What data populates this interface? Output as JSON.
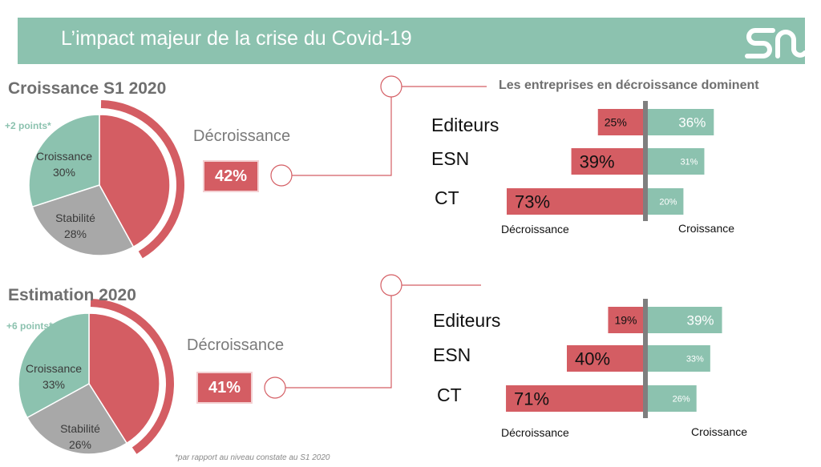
{
  "header": {
    "title": "L’impact majeur de la crise du Covid-19"
  },
  "footnote": "*par rapport au niveau constate au S1 2020",
  "colors": {
    "decroissance": "#d45d63",
    "croissance": "#8cc2af",
    "stabilite": "#a8a8a8",
    "divider": "#7f7f7f"
  },
  "logo": {
    "icon": "sn-logo-icon"
  },
  "sections": [
    {
      "title": "Croissance S1 2020",
      "points_note": "+2 points*",
      "decroissance_label": "Décroissance",
      "decroissance_value": "42%",
      "pie_labels": {
        "croissance": "Croissance",
        "croissance_value": "30%",
        "stabilite": "Stabilité",
        "stabilite_value": "28%"
      },
      "bars_heading": "Les entreprises en décroissance dominent",
      "categories": [
        "Editeurs",
        "ESN",
        "CT"
      ],
      "decr_labels": [
        "25%",
        "39%",
        "73%"
      ],
      "cro_labels": [
        "36%",
        "31%",
        "20%"
      ],
      "axis_left": "Décroissance",
      "axis_right": "Croissance"
    },
    {
      "title": "Estimation 2020",
      "points_note": "+6 points*",
      "decroissance_label": "Décroissance",
      "decroissance_value": "41%",
      "pie_labels": {
        "croissance": "Croissance",
        "croissance_value": "33%",
        "stabilite": "Stabilité",
        "stabilite_value": "26%"
      },
      "categories": [
        "Editeurs",
        "ESN",
        "CT"
      ],
      "decr_labels": [
        "19%",
        "40%",
        "71%"
      ],
      "cro_labels": [
        "39%",
        "33%",
        "26%"
      ],
      "axis_left": "Décroissance",
      "axis_right": "Croissance"
    }
  ],
  "chart_data": [
    {
      "type": "pie",
      "title": "Croissance S1 2020",
      "categories": [
        "Décroissance",
        "Croissance",
        "Stabilité"
      ],
      "values": [
        42,
        30,
        28
      ]
    },
    {
      "type": "bar",
      "title": "Les entreprises en décroissance dominent",
      "categories": [
        "Editeurs",
        "ESN",
        "CT"
      ],
      "series": [
        {
          "name": "Décroissance",
          "values": [
            25,
            39,
            73
          ]
        },
        {
          "name": "Croissance",
          "values": [
            36,
            31,
            20
          ]
        }
      ]
    },
    {
      "type": "pie",
      "title": "Estimation 2020",
      "categories": [
        "Décroissance",
        "Croissance",
        "Stabilité"
      ],
      "values": [
        41,
        33,
        26
      ]
    },
    {
      "type": "bar",
      "title": "",
      "categories": [
        "Editeurs",
        "ESN",
        "CT"
      ],
      "series": [
        {
          "name": "Décroissance",
          "values": [
            19,
            40,
            71
          ]
        },
        {
          "name": "Croissance",
          "values": [
            39,
            33,
            26
          ]
        }
      ]
    }
  ]
}
